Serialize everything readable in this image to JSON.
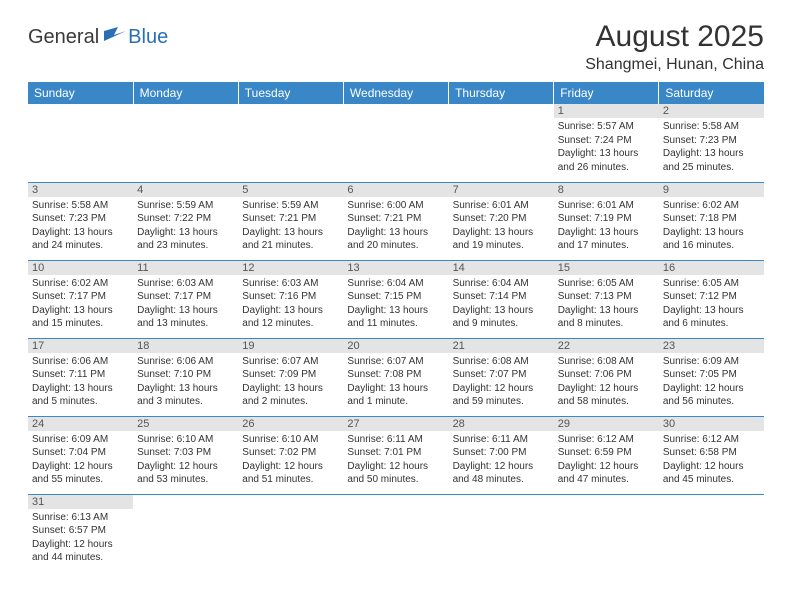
{
  "logo": {
    "general": "General",
    "blue": "Blue"
  },
  "title": "August 2025",
  "location": "Shangmei, Hunan, China",
  "colors": {
    "header_bg": "#3a87c8",
    "header_text": "#ffffff",
    "daynum_bg": "#e4e4e4",
    "border": "#3a87c8",
    "logo_blue": "#2a6fb5"
  },
  "weekdays": [
    "Sunday",
    "Monday",
    "Tuesday",
    "Wednesday",
    "Thursday",
    "Friday",
    "Saturday"
  ],
  "weeks": [
    [
      null,
      null,
      null,
      null,
      null,
      {
        "n": "1",
        "sr": "Sunrise: 5:57 AM",
        "ss": "Sunset: 7:24 PM",
        "dl": "Daylight: 13 hours and 26 minutes."
      },
      {
        "n": "2",
        "sr": "Sunrise: 5:58 AM",
        "ss": "Sunset: 7:23 PM",
        "dl": "Daylight: 13 hours and 25 minutes."
      }
    ],
    [
      {
        "n": "3",
        "sr": "Sunrise: 5:58 AM",
        "ss": "Sunset: 7:23 PM",
        "dl": "Daylight: 13 hours and 24 minutes."
      },
      {
        "n": "4",
        "sr": "Sunrise: 5:59 AM",
        "ss": "Sunset: 7:22 PM",
        "dl": "Daylight: 13 hours and 23 minutes."
      },
      {
        "n": "5",
        "sr": "Sunrise: 5:59 AM",
        "ss": "Sunset: 7:21 PM",
        "dl": "Daylight: 13 hours and 21 minutes."
      },
      {
        "n": "6",
        "sr": "Sunrise: 6:00 AM",
        "ss": "Sunset: 7:21 PM",
        "dl": "Daylight: 13 hours and 20 minutes."
      },
      {
        "n": "7",
        "sr": "Sunrise: 6:01 AM",
        "ss": "Sunset: 7:20 PM",
        "dl": "Daylight: 13 hours and 19 minutes."
      },
      {
        "n": "8",
        "sr": "Sunrise: 6:01 AM",
        "ss": "Sunset: 7:19 PM",
        "dl": "Daylight: 13 hours and 17 minutes."
      },
      {
        "n": "9",
        "sr": "Sunrise: 6:02 AM",
        "ss": "Sunset: 7:18 PM",
        "dl": "Daylight: 13 hours and 16 minutes."
      }
    ],
    [
      {
        "n": "10",
        "sr": "Sunrise: 6:02 AM",
        "ss": "Sunset: 7:17 PM",
        "dl": "Daylight: 13 hours and 15 minutes."
      },
      {
        "n": "11",
        "sr": "Sunrise: 6:03 AM",
        "ss": "Sunset: 7:17 PM",
        "dl": "Daylight: 13 hours and 13 minutes."
      },
      {
        "n": "12",
        "sr": "Sunrise: 6:03 AM",
        "ss": "Sunset: 7:16 PM",
        "dl": "Daylight: 13 hours and 12 minutes."
      },
      {
        "n": "13",
        "sr": "Sunrise: 6:04 AM",
        "ss": "Sunset: 7:15 PM",
        "dl": "Daylight: 13 hours and 11 minutes."
      },
      {
        "n": "14",
        "sr": "Sunrise: 6:04 AM",
        "ss": "Sunset: 7:14 PM",
        "dl": "Daylight: 13 hours and 9 minutes."
      },
      {
        "n": "15",
        "sr": "Sunrise: 6:05 AM",
        "ss": "Sunset: 7:13 PM",
        "dl": "Daylight: 13 hours and 8 minutes."
      },
      {
        "n": "16",
        "sr": "Sunrise: 6:05 AM",
        "ss": "Sunset: 7:12 PM",
        "dl": "Daylight: 13 hours and 6 minutes."
      }
    ],
    [
      {
        "n": "17",
        "sr": "Sunrise: 6:06 AM",
        "ss": "Sunset: 7:11 PM",
        "dl": "Daylight: 13 hours and 5 minutes."
      },
      {
        "n": "18",
        "sr": "Sunrise: 6:06 AM",
        "ss": "Sunset: 7:10 PM",
        "dl": "Daylight: 13 hours and 3 minutes."
      },
      {
        "n": "19",
        "sr": "Sunrise: 6:07 AM",
        "ss": "Sunset: 7:09 PM",
        "dl": "Daylight: 13 hours and 2 minutes."
      },
      {
        "n": "20",
        "sr": "Sunrise: 6:07 AM",
        "ss": "Sunset: 7:08 PM",
        "dl": "Daylight: 13 hours and 1 minute."
      },
      {
        "n": "21",
        "sr": "Sunrise: 6:08 AM",
        "ss": "Sunset: 7:07 PM",
        "dl": "Daylight: 12 hours and 59 minutes."
      },
      {
        "n": "22",
        "sr": "Sunrise: 6:08 AM",
        "ss": "Sunset: 7:06 PM",
        "dl": "Daylight: 12 hours and 58 minutes."
      },
      {
        "n": "23",
        "sr": "Sunrise: 6:09 AM",
        "ss": "Sunset: 7:05 PM",
        "dl": "Daylight: 12 hours and 56 minutes."
      }
    ],
    [
      {
        "n": "24",
        "sr": "Sunrise: 6:09 AM",
        "ss": "Sunset: 7:04 PM",
        "dl": "Daylight: 12 hours and 55 minutes."
      },
      {
        "n": "25",
        "sr": "Sunrise: 6:10 AM",
        "ss": "Sunset: 7:03 PM",
        "dl": "Daylight: 12 hours and 53 minutes."
      },
      {
        "n": "26",
        "sr": "Sunrise: 6:10 AM",
        "ss": "Sunset: 7:02 PM",
        "dl": "Daylight: 12 hours and 51 minutes."
      },
      {
        "n": "27",
        "sr": "Sunrise: 6:11 AM",
        "ss": "Sunset: 7:01 PM",
        "dl": "Daylight: 12 hours and 50 minutes."
      },
      {
        "n": "28",
        "sr": "Sunrise: 6:11 AM",
        "ss": "Sunset: 7:00 PM",
        "dl": "Daylight: 12 hours and 48 minutes."
      },
      {
        "n": "29",
        "sr": "Sunrise: 6:12 AM",
        "ss": "Sunset: 6:59 PM",
        "dl": "Daylight: 12 hours and 47 minutes."
      },
      {
        "n": "30",
        "sr": "Sunrise: 6:12 AM",
        "ss": "Sunset: 6:58 PM",
        "dl": "Daylight: 12 hours and 45 minutes."
      }
    ],
    [
      {
        "n": "31",
        "sr": "Sunrise: 6:13 AM",
        "ss": "Sunset: 6:57 PM",
        "dl": "Daylight: 12 hours and 44 minutes."
      },
      null,
      null,
      null,
      null,
      null,
      null
    ]
  ]
}
